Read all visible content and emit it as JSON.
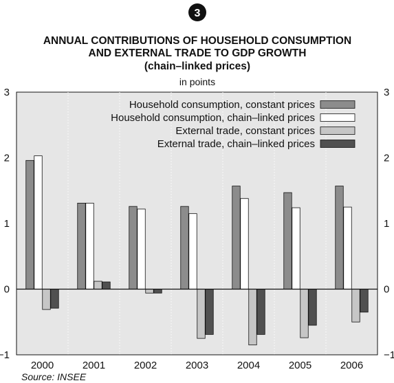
{
  "badge": "3",
  "chart_data": {
    "type": "bar",
    "title_lines": [
      "ANNUAL CONTRIBUTIONS OF HOUSEHOLD CONSUMPTION",
      "AND EXTERNAL TRADE TO GDP GROWTH",
      "(chain–linked prices)"
    ],
    "subtitle": "in points",
    "categories": [
      "2000",
      "2001",
      "2002",
      "2003",
      "2004",
      "2005",
      "2006"
    ],
    "series": [
      {
        "name": "Household consumption, constant prices",
        "color": "#8c8c8c",
        "values": [
          1.96,
          1.31,
          1.26,
          1.26,
          1.57,
          1.47,
          1.57
        ]
      },
      {
        "name": "Household consumption, chain–linked prices",
        "color": "#ffffff",
        "values": [
          2.03,
          1.31,
          1.22,
          1.15,
          1.38,
          1.24,
          1.25
        ]
      },
      {
        "name": "External trade, constant prices",
        "color": "#c6c6c6",
        "values": [
          -0.31,
          0.12,
          -0.06,
          -0.75,
          -0.85,
          -0.74,
          -0.5
        ]
      },
      {
        "name": "External trade, chain–linked prices",
        "color": "#505050",
        "values": [
          -0.29,
          0.11,
          -0.06,
          -0.69,
          -0.69,
          -0.55,
          -0.35
        ]
      }
    ],
    "ylim": [
      -1,
      3
    ],
    "yticks": [
      "3",
      "2",
      "1",
      "0",
      "−1"
    ],
    "ytick_values": [
      3,
      2,
      1,
      0,
      -1
    ],
    "grid": "vertical dotted",
    "legend_position": "top-right",
    "plot_background": "#e6e6e6",
    "source": "Source: INSEE"
  }
}
